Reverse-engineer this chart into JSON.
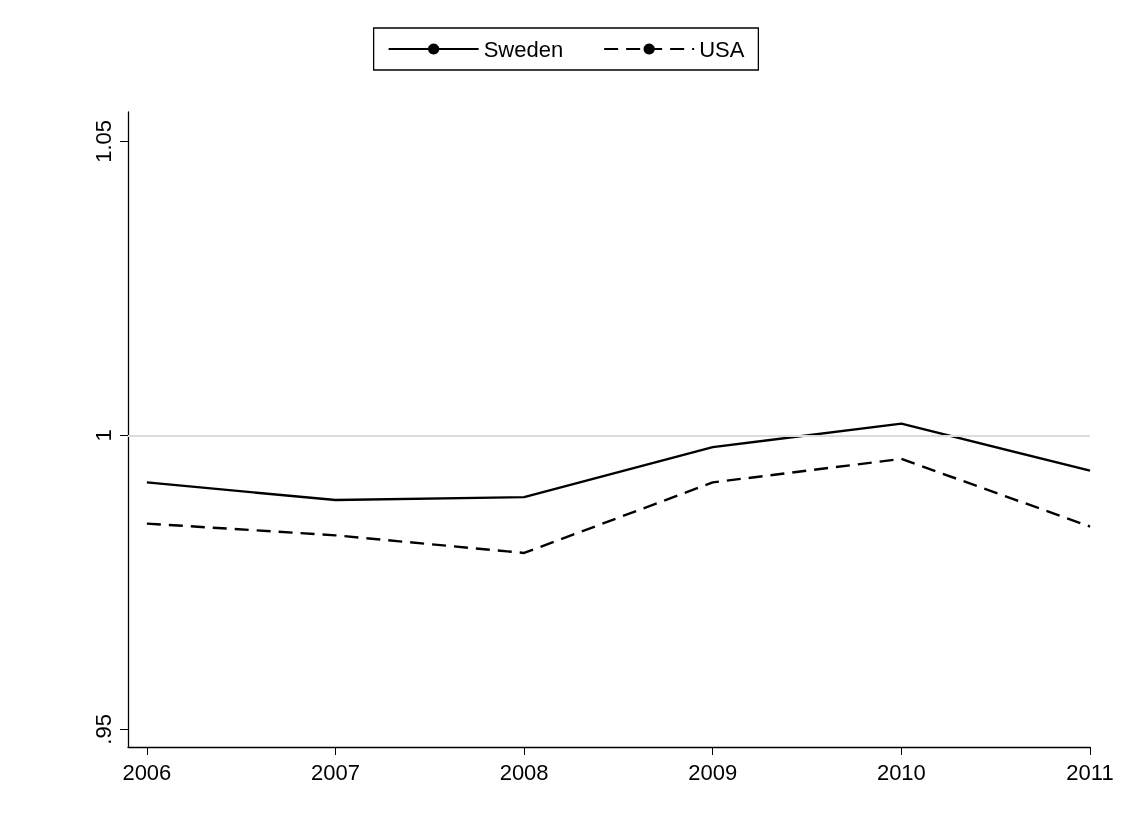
{
  "chart_data": {
    "type": "line",
    "x": [
      2006,
      2007,
      2008,
      2009,
      2010,
      2011
    ],
    "series": [
      {
        "name": "Sweden",
        "color": "#000000",
        "line_style": "solid",
        "values": [
          0.992,
          0.989,
          0.9895,
          0.998,
          1.002,
          0.994
        ]
      },
      {
        "name": "USA",
        "color": "#000000",
        "line_style": "dashed",
        "values": [
          0.985,
          0.983,
          0.98,
          0.992,
          0.996,
          0.9845
        ]
      }
    ],
    "xlim": [
      2005.9,
      2011
    ],
    "xticks": [
      2006,
      2007,
      2008,
      2009,
      2010,
      2011
    ],
    "ylim": [
      0.947,
      1.055
    ],
    "yticks": [
      {
        "value": 0.95,
        "label": ".95"
      },
      1,
      1.05
    ],
    "ref_lines": [
      {
        "axis": "y",
        "value": 1,
        "color": "#dcdcdc"
      }
    ],
    "legend": "top",
    "marker": "none",
    "grid": false
  }
}
